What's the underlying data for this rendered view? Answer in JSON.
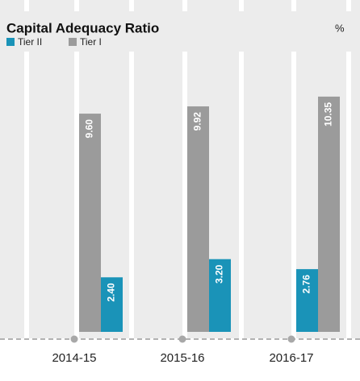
{
  "chart_data": {
    "type": "bar",
    "title": "Capital Adequacy Ratio",
    "unit_label": "%",
    "categories": [
      "2014-15",
      "2015-16",
      "2016-17"
    ],
    "series": [
      {
        "name": "Tier II",
        "color": "#1a93b8",
        "values": [
          2.4,
          3.2,
          2.76
        ],
        "value_labels": [
          "2.40",
          "3.20",
          "2.76"
        ]
      },
      {
        "name": "Tier I",
        "color": "#9b9b9b",
        "values": [
          9.6,
          9.92,
          10.35
        ],
        "value_labels": [
          "9.60",
          "9.92",
          "10.35"
        ]
      }
    ],
    "ylim": [
      0,
      14.6
    ]
  }
}
